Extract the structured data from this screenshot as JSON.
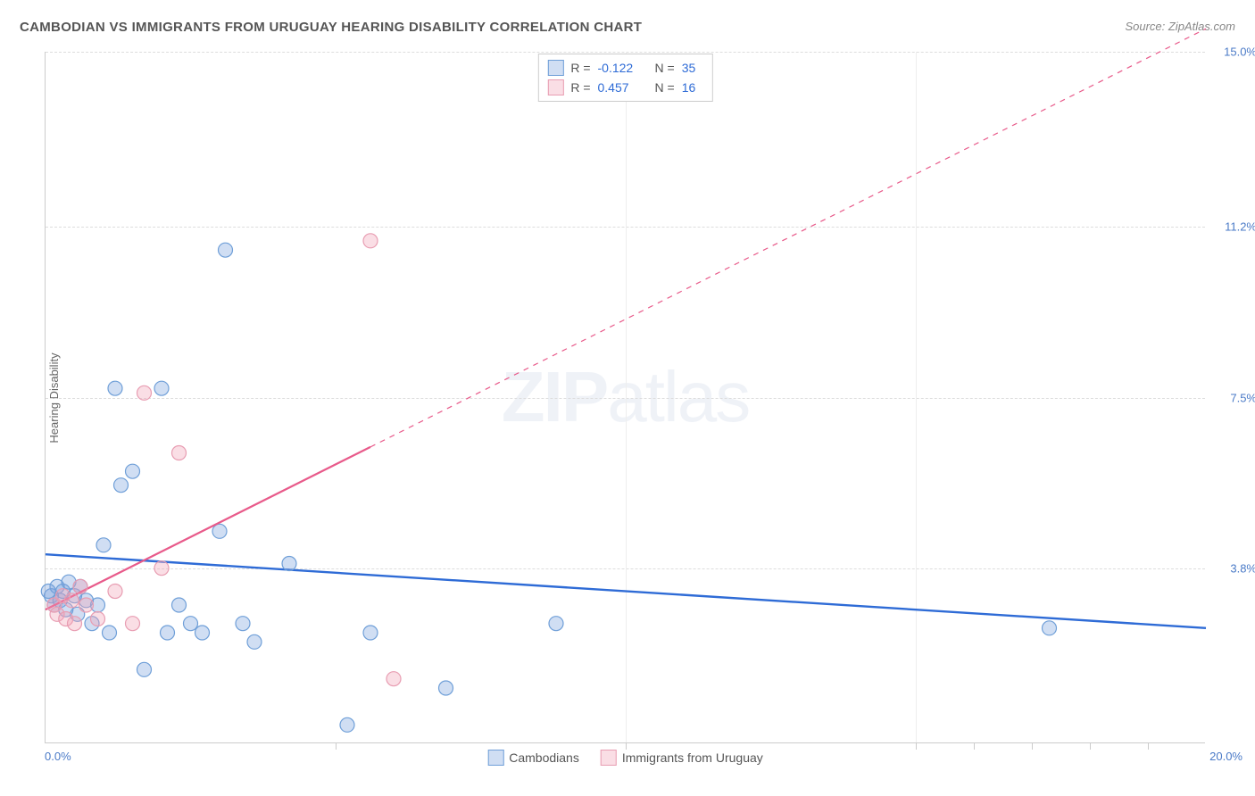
{
  "title": "CAMBODIAN VS IMMIGRANTS FROM URUGUAY HEARING DISABILITY CORRELATION CHART",
  "source": "Source: ZipAtlas.com",
  "y_axis_label": "Hearing Disability",
  "watermark": "ZIPatlas",
  "chart": {
    "type": "scatter",
    "xlim": [
      0,
      20
    ],
    "ylim": [
      0,
      15
    ],
    "x_origin_label": "0.0%",
    "x_max_label": "20.0%",
    "y_ticks": [
      3.8,
      7.5,
      11.2,
      15.0
    ],
    "y_tick_labels": [
      "3.8%",
      "7.5%",
      "11.2%",
      "15.0%"
    ],
    "x_minor_ticks": [
      5,
      10,
      15,
      16,
      17,
      18,
      19
    ],
    "background_color": "#ffffff",
    "grid_color": "#dddddd",
    "marker_radius": 8,
    "marker_stroke_width": 1.2,
    "series": [
      {
        "name": "Cambodians",
        "fill": "rgba(120,160,220,0.35)",
        "stroke": "#6f9fd8",
        "line_color": "#2e6bd6",
        "line_width": 2.4,
        "R": "-0.122",
        "N": "35",
        "regression": {
          "x1": 0,
          "y1": 4.1,
          "x2": 20,
          "y2": 2.5,
          "solid_until_x": 20
        },
        "points": [
          [
            0.1,
            3.2
          ],
          [
            0.15,
            3.0
          ],
          [
            0.2,
            3.4
          ],
          [
            0.25,
            3.1
          ],
          [
            0.3,
            3.3
          ],
          [
            0.35,
            2.9
          ],
          [
            0.4,
            3.5
          ],
          [
            0.5,
            3.2
          ],
          [
            0.55,
            2.8
          ],
          [
            0.6,
            3.4
          ],
          [
            0.7,
            3.1
          ],
          [
            0.8,
            2.6
          ],
          [
            0.9,
            3.0
          ],
          [
            1.0,
            4.3
          ],
          [
            1.1,
            2.4
          ],
          [
            1.2,
            7.7
          ],
          [
            1.3,
            5.6
          ],
          [
            1.5,
            5.9
          ],
          [
            1.7,
            1.6
          ],
          [
            2.0,
            7.7
          ],
          [
            2.1,
            2.4
          ],
          [
            2.3,
            3.0
          ],
          [
            2.5,
            2.6
          ],
          [
            2.7,
            2.4
          ],
          [
            3.0,
            4.6
          ],
          [
            3.1,
            10.7
          ],
          [
            3.4,
            2.6
          ],
          [
            3.6,
            2.2
          ],
          [
            4.2,
            3.9
          ],
          [
            5.2,
            0.4
          ],
          [
            5.6,
            2.4
          ],
          [
            6.9,
            1.2
          ],
          [
            8.8,
            2.6
          ],
          [
            17.3,
            2.5
          ],
          [
            0.05,
            3.3
          ]
        ]
      },
      {
        "name": "Immigrants from Uruguay",
        "fill": "rgba(240,160,180,0.35)",
        "stroke": "#e89db2",
        "line_color": "#e85a8a",
        "line_width": 2.2,
        "R": "0.457",
        "N": "16",
        "regression": {
          "x1": 0,
          "y1": 2.9,
          "x2": 20,
          "y2": 15.5,
          "solid_until_x": 5.6
        },
        "points": [
          [
            0.15,
            3.0
          ],
          [
            0.2,
            2.8
          ],
          [
            0.3,
            3.2
          ],
          [
            0.35,
            2.7
          ],
          [
            0.45,
            3.1
          ],
          [
            0.5,
            2.6
          ],
          [
            0.7,
            3.0
          ],
          [
            0.9,
            2.7
          ],
          [
            1.2,
            3.3
          ],
          [
            1.5,
            2.6
          ],
          [
            1.7,
            7.6
          ],
          [
            2.0,
            3.8
          ],
          [
            2.3,
            6.3
          ],
          [
            5.6,
            10.9
          ],
          [
            6.0,
            1.4
          ],
          [
            0.6,
            3.4
          ]
        ]
      }
    ]
  },
  "legend_top": {
    "r_label": "R =",
    "n_label": "N ="
  }
}
